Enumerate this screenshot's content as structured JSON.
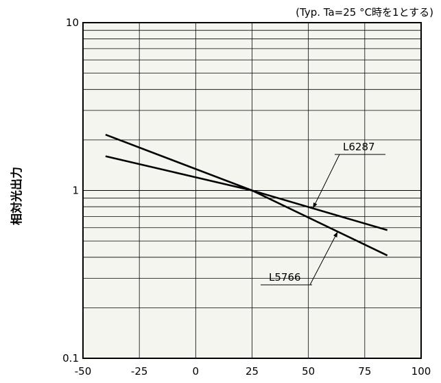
{
  "chart_data": {
    "type": "line",
    "note": "(Typ. Ta=25 °C時を1とする)",
    "xlabel": "",
    "ylabel": "相対光出力",
    "xlim": [
      -50,
      100
    ],
    "ylim": [
      0.1,
      10
    ],
    "y_scale": "log",
    "x_ticks": [
      -50,
      -25,
      0,
      25,
      50,
      75,
      100
    ],
    "x_tick_labels": [
      "-50",
      "-25",
      "0",
      "25",
      "50",
      "75",
      "100"
    ],
    "y_ticks": [
      0.1,
      1,
      10
    ],
    "y_tick_labels": [
      "0.1",
      "1",
      "10"
    ],
    "grid": true,
    "series": [
      {
        "name": "L6287",
        "x": [
          -40,
          25,
          85
        ],
        "y": [
          1.6,
          1.0,
          0.58
        ]
      },
      {
        "name": "L5766",
        "x": [
          -40,
          25,
          85
        ],
        "y": [
          2.15,
          1.0,
          0.41
        ]
      }
    ],
    "colors": {
      "line": "#000000",
      "grid": "#000000",
      "background": "#f5f5ef"
    }
  }
}
